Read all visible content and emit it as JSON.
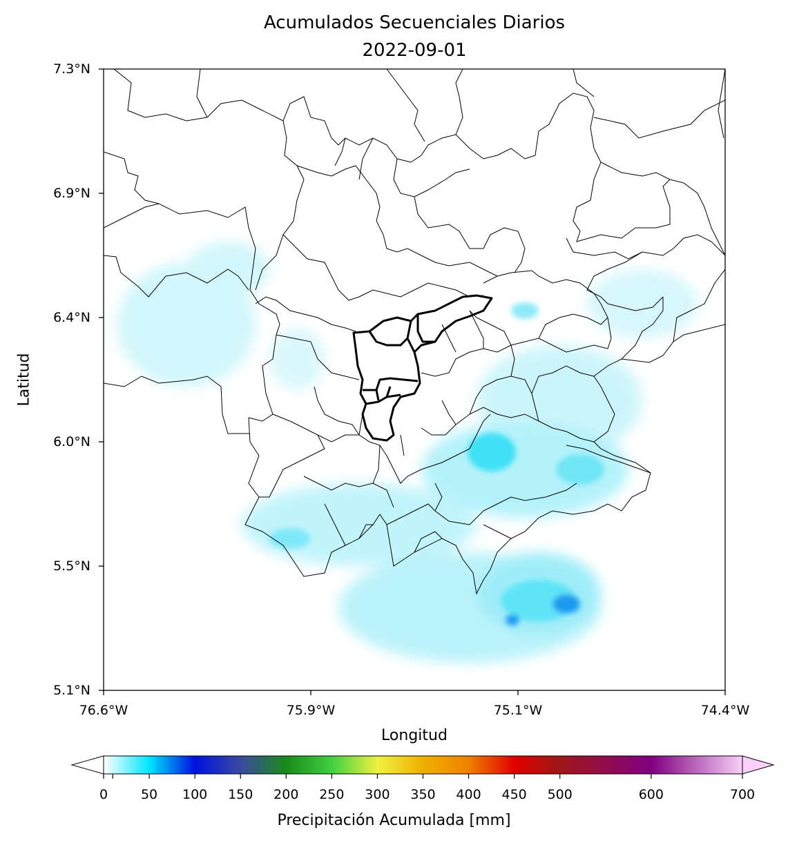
{
  "title": "Acumulados Secuenciales Diarios",
  "subtitle": "2022-09-01",
  "axes": {
    "xlabel": "Longitud",
    "ylabel": "Latitud",
    "x_ticks": [
      "76.6°W",
      "75.9°W",
      "75.1°W",
      "74.4°W"
    ],
    "y_ticks": [
      "7.3°N",
      "6.9°N",
      "6.4°N",
      "6.0°N",
      "5.5°N",
      "5.1°N"
    ]
  },
  "colorbar": {
    "label": "Precipitación Acumulada [mm]",
    "ticks": [
      "0",
      "50",
      "100",
      "150",
      "200",
      "250",
      "300",
      "350",
      "400",
      "450",
      "500",
      "600",
      "700"
    ],
    "tick_values": [
      0,
      50,
      100,
      150,
      200,
      250,
      300,
      350,
      400,
      450,
      500,
      600,
      700
    ],
    "range": [
      0,
      700
    ],
    "stops": [
      {
        "v": 0,
        "c": "#ffffff"
      },
      {
        "v": 50,
        "c": "#00e5ff"
      },
      {
        "v": 100,
        "c": "#0010e0"
      },
      {
        "v": 150,
        "c": "#3a4aa0"
      },
      {
        "v": 200,
        "c": "#1a8a1a"
      },
      {
        "v": 250,
        "c": "#40d040"
      },
      {
        "v": 300,
        "c": "#f0f040"
      },
      {
        "v": 350,
        "c": "#f0b000"
      },
      {
        "v": 400,
        "c": "#f08000"
      },
      {
        "v": 450,
        "c": "#e00000"
      },
      {
        "v": 500,
        "c": "#a01818"
      },
      {
        "v": 600,
        "c": "#800080"
      },
      {
        "v": 700,
        "c": "#f8d0f8"
      }
    ]
  },
  "colors": {
    "boundary": "#000000",
    "precip_light": "#b8f3fb",
    "precip_mid": "#6fe6fa",
    "precip_strong": "#18d8f4",
    "precip_peak": "#1a70f0"
  }
}
